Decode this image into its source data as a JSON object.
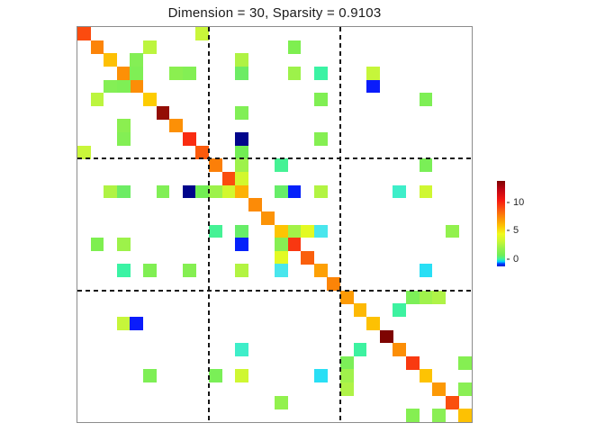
{
  "figure": {
    "title": "Dimension = 30, Sparsity = 0.9103",
    "background_color": "#ffffff",
    "axes_border_color": "#8c8c8c",
    "divider_line_color": "#161616"
  },
  "chart_data": {
    "type": "heatmap",
    "title": "Dimension = 30, Sparsity = 0.9103",
    "matrix_dimension": 30,
    "sparsity": 0.9103,
    "xlabel": "",
    "ylabel": "",
    "x_tick_labels": [],
    "y_tick_labels": [],
    "grid": {
      "block_lines_after_rows": [
        10,
        20
      ],
      "block_lines_after_cols": [
        10,
        20
      ],
      "line_style": "dashed",
      "line_color": "#161616"
    },
    "colorbar": {
      "position": "right",
      "min": -1.3,
      "max": 13.8,
      "ticks": [
        0,
        5,
        10
      ],
      "stops_bottom_to_top": [
        {
          "pos": 0.0,
          "color": "#0020D0"
        },
        {
          "pos": 0.03,
          "color": "#0038FF"
        },
        {
          "pos": 0.055,
          "color": "#00CFFF"
        },
        {
          "pos": 0.085,
          "color": "#3CF2A0"
        },
        {
          "pos": 0.13,
          "color": "#6FEE58"
        },
        {
          "pos": 0.21,
          "color": "#95F14B"
        },
        {
          "pos": 0.3,
          "color": "#CDF732"
        },
        {
          "pos": 0.38,
          "color": "#F0FA1C"
        },
        {
          "pos": 0.47,
          "color": "#FDC403"
        },
        {
          "pos": 0.57,
          "color": "#FC8D07"
        },
        {
          "pos": 0.67,
          "color": "#FA5410"
        },
        {
          "pos": 0.77,
          "color": "#F71911"
        },
        {
          "pos": 0.9,
          "color": "#BE0413"
        },
        {
          "pos": 1.0,
          "color": "#7E0402"
        }
      ]
    },
    "cell_format": [
      "row",
      "col",
      "value",
      "color"
    ],
    "cells": [
      [
        1,
        1,
        9.4,
        "#FB4B0F"
      ],
      [
        2,
        2,
        7.9,
        "#FC8408"
      ],
      [
        3,
        3,
        6.3,
        "#FDC004"
      ],
      [
        4,
        4,
        7.7,
        "#FD9006"
      ],
      [
        5,
        5,
        7.8,
        "#FC8D07"
      ],
      [
        6,
        6,
        6.1,
        "#FDCC02"
      ],
      [
        7,
        7,
        12.8,
        "#930D05"
      ],
      [
        8,
        8,
        7.7,
        "#FC9006"
      ],
      [
        9,
        9,
        10.2,
        "#F92C11"
      ],
      [
        10,
        10,
        9.1,
        "#FB5A0B"
      ],
      [
        11,
        11,
        8.0,
        "#FC7F08"
      ],
      [
        12,
        12,
        9.4,
        "#FA4D0E"
      ],
      [
        13,
        13,
        6.6,
        "#FDB204"
      ],
      [
        14,
        14,
        7.8,
        "#FC8B07"
      ],
      [
        15,
        15,
        7.6,
        "#FC9306"
      ],
      [
        16,
        16,
        6.2,
        "#FDC403"
      ],
      [
        17,
        17,
        10.0,
        "#F93711"
      ],
      [
        18,
        18,
        9.0,
        "#FA5F0C"
      ],
      [
        19,
        19,
        7.2,
        "#FDA005"
      ],
      [
        20,
        20,
        7.9,
        "#FC8407"
      ],
      [
        21,
        21,
        7.4,
        "#FC9A05"
      ],
      [
        22,
        22,
        6.5,
        "#FDB904"
      ],
      [
        23,
        23,
        6.3,
        "#FDC103"
      ],
      [
        24,
        24,
        13.6,
        "#7E0402"
      ],
      [
        25,
        25,
        7.7,
        "#FC8E06"
      ],
      [
        26,
        26,
        9.9,
        "#F93A10"
      ],
      [
        27,
        27,
        6.2,
        "#FDC303"
      ],
      [
        28,
        28,
        7.4,
        "#FC9905"
      ],
      [
        29,
        29,
        9.3,
        "#FA4F0D"
      ],
      [
        30,
        30,
        6.3,
        "#FDC103"
      ],
      [
        1,
        10,
        3.1,
        "#C9F63A"
      ],
      [
        10,
        1,
        3.1,
        "#C9F63A"
      ],
      [
        2,
        6,
        2.9,
        "#BCF53E"
      ],
      [
        6,
        2,
        2.9,
        "#BCF53E"
      ],
      [
        2,
        17,
        1.4,
        "#7EEF50"
      ],
      [
        17,
        2,
        1.4,
        "#7EEF50"
      ],
      [
        3,
        5,
        1.5,
        "#84EF55"
      ],
      [
        5,
        3,
        1.5,
        "#84EF55"
      ],
      [
        4,
        5,
        1.4,
        "#7FEF55"
      ],
      [
        5,
        4,
        1.4,
        "#7FEF55"
      ],
      [
        3,
        13,
        2.7,
        "#AFF344"
      ],
      [
        13,
        3,
        2.7,
        "#AFF344"
      ],
      [
        4,
        13,
        1.1,
        "#6DEC64"
      ],
      [
        13,
        4,
        1.1,
        "#6DEC64"
      ],
      [
        4,
        8,
        1.6,
        "#8BEF50"
      ],
      [
        8,
        4,
        1.6,
        "#8BEF50"
      ],
      [
        4,
        9,
        1.5,
        "#83EF54"
      ],
      [
        9,
        4,
        1.5,
        "#83EF54"
      ],
      [
        4,
        17,
        2.2,
        "#9DF24A"
      ],
      [
        17,
        4,
        2.2,
        "#9DF24A"
      ],
      [
        4,
        19,
        0.1,
        "#3BF3A4"
      ],
      [
        19,
        4,
        0.1,
        "#3BF3A4"
      ],
      [
        4,
        23,
        3.1,
        "#C6F63A"
      ],
      [
        23,
        4,
        3.1,
        "#C6F63A"
      ],
      [
        5,
        23,
        -1.1,
        "#0A1CFB"
      ],
      [
        23,
        5,
        -1.1,
        "#0A1CFB"
      ],
      [
        6,
        19,
        1.4,
        "#80EF53"
      ],
      [
        19,
        6,
        1.4,
        "#80EF53"
      ],
      [
        6,
        27,
        1.4,
        "#7EEF55"
      ],
      [
        27,
        6,
        1.4,
        "#7EEF55"
      ],
      [
        7,
        13,
        1.4,
        "#81EF56"
      ],
      [
        13,
        7,
        1.4,
        "#81EF56"
      ],
      [
        9,
        13,
        -1.3,
        "#01058B"
      ],
      [
        13,
        9,
        -1.3,
        "#01058B"
      ],
      [
        9,
        19,
        1.5,
        "#85EF52"
      ],
      [
        19,
        9,
        1.5,
        "#85EF52"
      ],
      [
        10,
        13,
        1.2,
        "#72EE53"
      ],
      [
        13,
        10,
        1.2,
        "#72EE53"
      ],
      [
        11,
        13,
        2.1,
        "#9DF24B"
      ],
      [
        13,
        11,
        2.1,
        "#9DF24B"
      ],
      [
        12,
        13,
        3.5,
        "#D2F82E"
      ],
      [
        13,
        12,
        3.5,
        "#D2F82E"
      ],
      [
        11,
        16,
        0.25,
        "#45F295"
      ],
      [
        16,
        11,
        0.25,
        "#45F295"
      ],
      [
        11,
        27,
        1.35,
        "#7AEF57"
      ],
      [
        27,
        11,
        1.35,
        "#7AEF57"
      ],
      [
        13,
        16,
        1.0,
        "#67ED68"
      ],
      [
        16,
        13,
        1.0,
        "#67ED68"
      ],
      [
        13,
        17,
        -1.1,
        "#0521FA"
      ],
      [
        17,
        13,
        -1.1,
        "#0521FA"
      ],
      [
        13,
        19,
        2.7,
        "#B2F442"
      ],
      [
        19,
        13,
        2.7,
        "#B2F442"
      ],
      [
        13,
        25,
        -0.4,
        "#3EEEC9"
      ],
      [
        25,
        13,
        -0.4,
        "#3EEEC9"
      ],
      [
        13,
        27,
        3.4,
        "#CFF732"
      ],
      [
        27,
        13,
        3.4,
        "#CFF732"
      ],
      [
        16,
        17,
        2.4,
        "#A3F248"
      ],
      [
        17,
        16,
        1.5,
        "#86EF53"
      ],
      [
        16,
        18,
        4.0,
        "#E3FA23"
      ],
      [
        18,
        16,
        4.0,
        "#E3FA23"
      ],
      [
        16,
        19,
        -0.55,
        "#49E6ED"
      ],
      [
        19,
        16,
        -0.55,
        "#49E6ED"
      ],
      [
        16,
        29,
        1.8,
        "#92F14E"
      ],
      [
        29,
        16,
        1.8,
        "#92F14E"
      ],
      [
        19,
        27,
        -0.65,
        "#29DFF5"
      ],
      [
        27,
        19,
        -0.65,
        "#29DFF5"
      ],
      [
        21,
        26,
        1.4,
        "#7CEF58"
      ],
      [
        26,
        21,
        1.4,
        "#7CEF58"
      ],
      [
        21,
        27,
        2.2,
        "#A0F24C"
      ],
      [
        27,
        21,
        2.2,
        "#A0F24C"
      ],
      [
        21,
        28,
        2.6,
        "#AFF347"
      ],
      [
        28,
        21,
        2.6,
        "#AFF347"
      ],
      [
        22,
        25,
        0.1,
        "#3DF2A0"
      ],
      [
        25,
        22,
        0.1,
        "#3DF2A0"
      ],
      [
        26,
        30,
        1.5,
        "#85EF52"
      ],
      [
        30,
        26,
        1.5,
        "#85EF52"
      ],
      [
        28,
        30,
        1.6,
        "#8AEF55"
      ],
      [
        30,
        28,
        1.6,
        "#8AEF55"
      ]
    ]
  }
}
